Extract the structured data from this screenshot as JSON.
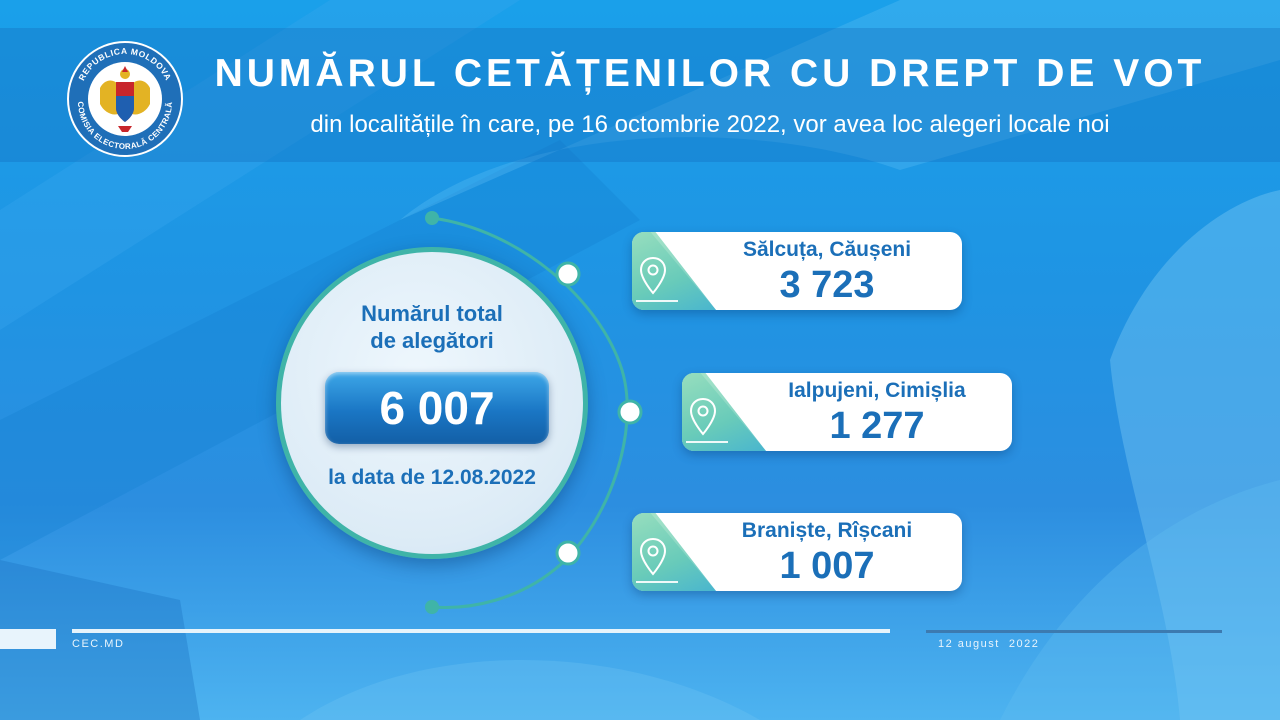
{
  "header": {
    "title": "NUMĂRUL CETĂȚENILOR CU DREPT DE VOT",
    "subtitle": "din localitățile în care, pe 16 octombrie 2022, vor avea loc alegeri locale noi"
  },
  "logo": {
    "top_text": "REPUBLICA MOLDOVA",
    "bottom_text": "COMISIA ELECTORALĂ CENTRALĂ",
    "icon": "coat-of-arms-icon"
  },
  "summary": {
    "label_line1": "Numărul total",
    "label_line2": "de alegători",
    "total": "6 007",
    "date_text": "la data de 12.08.2022"
  },
  "localities": [
    {
      "name": "Sălcuța, Căușeni",
      "value": "3 723"
    },
    {
      "name": "Ialpujeni, Cimișlia",
      "value": "1 277"
    },
    {
      "name": "Braniște, Rîșcani",
      "value": "1 007"
    }
  ],
  "footer": {
    "site": "CEC.MD",
    "date": "12 august  2022"
  },
  "colors": {
    "accent_blue": "#1b6fb8",
    "teal": "#3fb4a8",
    "background": "#1f94e3"
  }
}
